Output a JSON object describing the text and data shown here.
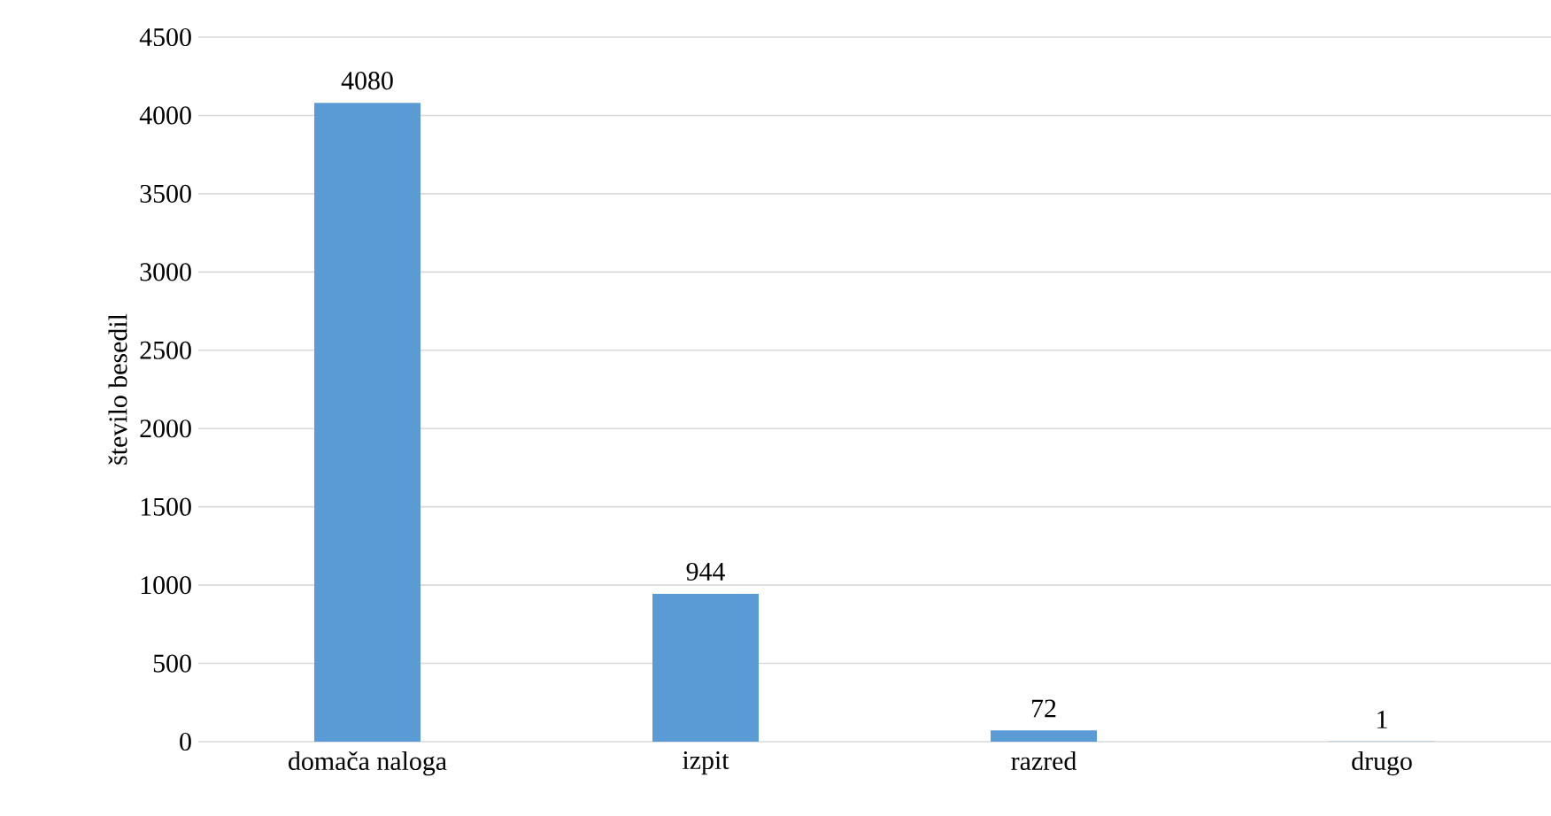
{
  "chart_data": {
    "type": "bar",
    "ylabel": "število besedil",
    "categories": [
      "domača naloga",
      "izpit",
      "razred",
      "drugo"
    ],
    "values": [
      4080,
      944,
      72,
      1
    ],
    "color": "#5b9bd5",
    "data_labels": true,
    "ylim": [
      0,
      4500
    ],
    "yticks": [
      0,
      500,
      1000,
      1500,
      2000,
      2500,
      3000,
      3500,
      4000,
      4500
    ],
    "grid": "y"
  }
}
